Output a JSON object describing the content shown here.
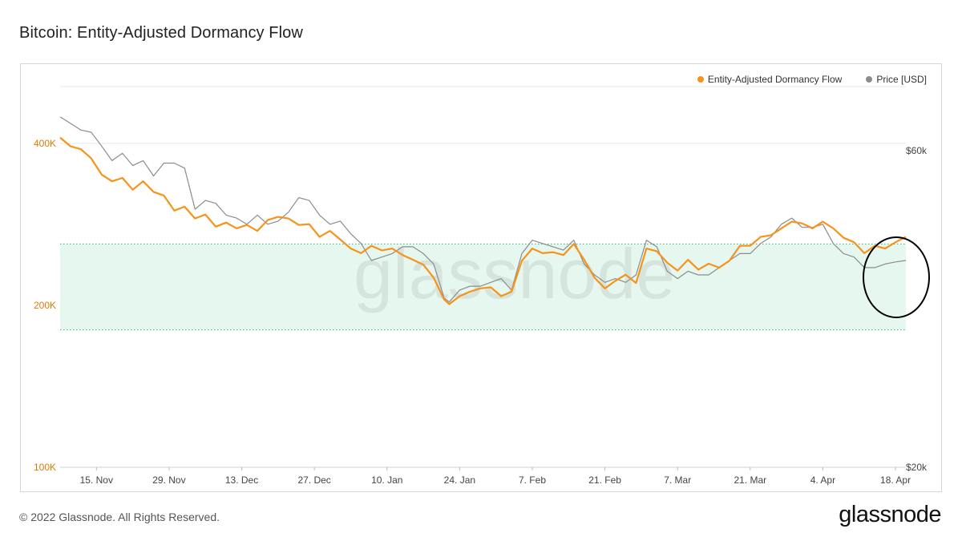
{
  "header": {
    "title": "Bitcoin: Entity-Adjusted Dormancy Flow"
  },
  "footer": {
    "copyright": "© 2022 Glassnode. All Rights Reserved.",
    "logo_text": "glassnode"
  },
  "watermark": "glassnode",
  "colors": {
    "dormancy": "#f7931a",
    "price": "#8c8c8c",
    "band_fill": "#e6f7ef",
    "band_line": "#3aaa7a",
    "grid": "#e8e8e8",
    "annotation": "#000000",
    "left_tick": "#e07b00"
  },
  "chart_data": {
    "type": "line",
    "title": "Bitcoin: Entity-Adjusted Dormancy Flow",
    "x_ticks": [
      "15. Nov",
      "29. Nov",
      "13. Dec",
      "27. Dec",
      "10. Jan",
      "24. Jan",
      "7. Feb",
      "21. Feb",
      "7. Mar",
      "21. Mar",
      "4. Apr",
      "18. Apr"
    ],
    "x_range": [
      "2021-11-08",
      "2022-04-20"
    ],
    "y_left": {
      "scale": "log",
      "range": [
        100000,
        510000
      ],
      "ticks": [
        "100K",
        "200K",
        "400K"
      ],
      "tick_values": [
        100000,
        200000,
        400000
      ]
    },
    "y_right": {
      "scale": "log",
      "range": [
        20000,
        75000
      ],
      "ticks": [
        "$20k",
        "$60k"
      ],
      "tick_values": [
        20000,
        60000
      ]
    },
    "band": {
      "min": 180000,
      "max": 260000
    },
    "grid": true,
    "legend_position": "top-right",
    "series": [
      {
        "name": "Entity-Adjusted Dormancy Flow",
        "axis": "left",
        "x": [
          "2021-11-08",
          "2021-11-10",
          "2021-11-12",
          "2021-11-14",
          "2021-11-16",
          "2021-11-18",
          "2021-11-20",
          "2021-11-22",
          "2021-11-24",
          "2021-11-26",
          "2021-11-28",
          "2021-11-30",
          "2021-12-02",
          "2021-12-04",
          "2021-12-06",
          "2021-12-08",
          "2021-12-10",
          "2021-12-12",
          "2021-12-14",
          "2021-12-16",
          "2021-12-18",
          "2021-12-20",
          "2021-12-22",
          "2021-12-24",
          "2021-12-26",
          "2021-12-28",
          "2021-12-30",
          "2022-01-01",
          "2022-01-03",
          "2022-01-05",
          "2022-01-07",
          "2022-01-09",
          "2022-01-11",
          "2022-01-13",
          "2022-01-15",
          "2022-01-17",
          "2022-01-19",
          "2022-01-21",
          "2022-01-22",
          "2022-01-24",
          "2022-01-26",
          "2022-01-28",
          "2022-01-30",
          "2022-02-01",
          "2022-02-03",
          "2022-02-05",
          "2022-02-07",
          "2022-02-09",
          "2022-02-11",
          "2022-02-13",
          "2022-02-15",
          "2022-02-17",
          "2022-02-19",
          "2022-02-21",
          "2022-02-23",
          "2022-02-25",
          "2022-02-27",
          "2022-03-01",
          "2022-03-03",
          "2022-03-05",
          "2022-03-07",
          "2022-03-09",
          "2022-03-11",
          "2022-03-13",
          "2022-03-15",
          "2022-03-17",
          "2022-03-19",
          "2022-03-21",
          "2022-03-23",
          "2022-03-25",
          "2022-03-27",
          "2022-03-29",
          "2022-03-31",
          "2022-04-02",
          "2022-04-04",
          "2022-04-06",
          "2022-04-08",
          "2022-04-10",
          "2022-04-12",
          "2022-04-14",
          "2022-04-16",
          "2022-04-18",
          "2022-04-20"
        ],
        "values": [
          410000,
          395000,
          390000,
          375000,
          350000,
          340000,
          345000,
          328000,
          340000,
          325000,
          320000,
          300000,
          305000,
          290000,
          295000,
          280000,
          285000,
          278000,
          282000,
          275000,
          288000,
          292000,
          290000,
          282000,
          283000,
          268000,
          275000,
          265000,
          255000,
          250000,
          258000,
          253000,
          255000,
          248000,
          243000,
          238000,
          225000,
          205000,
          201000,
          208000,
          212000,
          215000,
          216000,
          208000,
          212000,
          242000,
          255000,
          250000,
          251000,
          248000,
          260000,
          243000,
          225000,
          215000,
          222000,
          228000,
          220000,
          255000,
          252000,
          240000,
          232000,
          243000,
          233000,
          239000,
          235000,
          242000,
          258000,
          258000,
          268000,
          270000,
          278000,
          286000,
          284000,
          278000,
          286000,
          278000,
          267000,
          262000,
          250000,
          258000,
          255000,
          262000,
          268000
        ]
      },
      {
        "name": "Price [USD]",
        "axis": "right",
        "x": [
          "2021-11-08",
          "2021-11-10",
          "2021-11-12",
          "2021-11-14",
          "2021-11-16",
          "2021-11-18",
          "2021-11-20",
          "2021-11-22",
          "2021-11-24",
          "2021-11-26",
          "2021-11-28",
          "2021-11-30",
          "2021-12-02",
          "2021-12-04",
          "2021-12-06",
          "2021-12-08",
          "2021-12-10",
          "2021-12-12",
          "2021-12-14",
          "2021-12-16",
          "2021-12-18",
          "2021-12-20",
          "2021-12-22",
          "2021-12-24",
          "2021-12-26",
          "2021-12-28",
          "2021-12-30",
          "2022-01-01",
          "2022-01-03",
          "2022-01-05",
          "2022-01-07",
          "2022-01-09",
          "2022-01-11",
          "2022-01-13",
          "2022-01-15",
          "2022-01-17",
          "2022-01-19",
          "2022-01-21",
          "2022-01-22",
          "2022-01-24",
          "2022-01-26",
          "2022-01-28",
          "2022-01-30",
          "2022-02-01",
          "2022-02-03",
          "2022-02-05",
          "2022-02-07",
          "2022-02-09",
          "2022-02-11",
          "2022-02-13",
          "2022-02-15",
          "2022-02-17",
          "2022-02-19",
          "2022-02-21",
          "2022-02-23",
          "2022-02-25",
          "2022-02-27",
          "2022-03-01",
          "2022-03-03",
          "2022-03-05",
          "2022-03-07",
          "2022-03-09",
          "2022-03-11",
          "2022-03-13",
          "2022-03-15",
          "2022-03-17",
          "2022-03-19",
          "2022-03-21",
          "2022-03-23",
          "2022-03-25",
          "2022-03-27",
          "2022-03-29",
          "2022-03-31",
          "2022-04-02",
          "2022-04-04",
          "2022-04-06",
          "2022-04-08",
          "2022-04-10",
          "2022-04-12",
          "2022-04-14",
          "2022-04-16",
          "2022-04-18",
          "2022-04-20"
        ],
        "values": [
          67500,
          66000,
          64500,
          64000,
          61000,
          58000,
          59500,
          57000,
          58000,
          55000,
          57500,
          57500,
          56500,
          49000,
          50500,
          50000,
          48000,
          47500,
          46500,
          48000,
          46500,
          47000,
          48500,
          51000,
          50500,
          48000,
          46500,
          47000,
          45000,
          43500,
          41000,
          41500,
          42000,
          43000,
          43000,
          42000,
          40500,
          36000,
          35500,
          37000,
          37500,
          37500,
          38000,
          38500,
          37000,
          42000,
          44000,
          43500,
          43000,
          42500,
          44000,
          40500,
          39000,
          38000,
          38500,
          38000,
          39000,
          44000,
          43000,
          39500,
          38500,
          39500,
          39000,
          39000,
          40000,
          41000,
          42000,
          42000,
          43500,
          44500,
          46500,
          47500,
          46000,
          46000,
          46500,
          43500,
          42000,
          41500,
          40000,
          40000,
          40500,
          40800,
          41000
        ]
      }
    ]
  }
}
